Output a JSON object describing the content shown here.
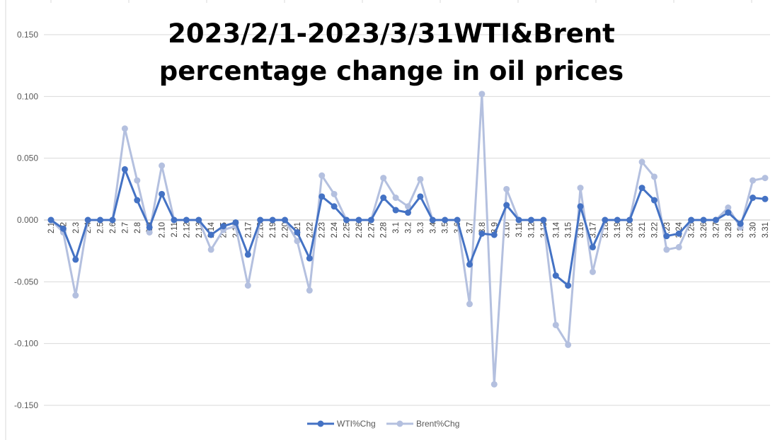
{
  "chart_data": {
    "type": "line",
    "title_lines": [
      "2023/2/1-2023/3/31WTI&Brent",
      "percentage change in oil prices"
    ],
    "xlabel": "",
    "ylabel": "",
    "ylim": [
      -0.15,
      0.15
    ],
    "yticks": [
      "0.150",
      "0.100",
      "0.050",
      "0.000",
      "-0.050",
      "-0.100",
      "-0.150"
    ],
    "ytick_values": [
      0.15,
      0.1,
      0.05,
      0.0,
      -0.05,
      -0.1,
      -0.15
    ],
    "grid": true,
    "legend_position": "bottom",
    "categories": [
      "2.1",
      "2.2",
      "2.3",
      "2.4",
      "2.5",
      "2.6",
      "2.7",
      "2.8",
      "2.9",
      "2.10",
      "2.11",
      "2.12",
      "2.13",
      "2.14",
      "2.15",
      "2.16",
      "2.17",
      "2.18",
      "2.19",
      "2.20",
      "2.21",
      "2.22",
      "2.23",
      "2.24",
      "2.25",
      "2.26",
      "2.27",
      "2.28",
      "3.1",
      "3.2",
      "3.3",
      "3.4",
      "3.5",
      "3.6",
      "3.7",
      "3.8",
      "3.9",
      "3.10",
      "3.11",
      "3.12",
      "3.13",
      "3.14",
      "3.15",
      "3.16",
      "3.17",
      "3.18",
      "3.19",
      "3.20",
      "3.21",
      "3.22",
      "3.23",
      "3.24",
      "3.25",
      "3.26",
      "3.27",
      "3.28",
      "3.29",
      "3.30",
      "3.31"
    ],
    "series": [
      {
        "name": "WTI%Chg",
        "color": "#4472c4",
        "values": [
          0.0,
          -0.007,
          -0.032,
          0.0,
          0.0,
          0.0,
          0.041,
          0.016,
          -0.006,
          0.021,
          0.0,
          0.0,
          0.0,
          -0.012,
          -0.005,
          -0.002,
          -0.028,
          0.0,
          0.0,
          0.0,
          -0.01,
          -0.031,
          0.019,
          0.011,
          0.0,
          0.0,
          0.0,
          0.018,
          0.008,
          0.006,
          0.019,
          0.0,
          0.0,
          0.0,
          -0.036,
          -0.011,
          -0.012,
          0.012,
          0.0,
          0.0,
          0.0,
          -0.045,
          -0.053,
          0.011,
          -0.022,
          0.0,
          0.0,
          0.0,
          0.026,
          0.016,
          -0.013,
          -0.011,
          0.0,
          0.0,
          0.0,
          0.006,
          -0.003,
          0.018,
          0.017
        ]
      },
      {
        "name": "Brent%Chg",
        "color": "#b4c0df",
        "values": [
          0.0,
          -0.01,
          -0.061,
          0.0,
          0.0,
          0.0,
          0.074,
          0.032,
          -0.01,
          0.044,
          0.0,
          0.0,
          0.0,
          -0.024,
          -0.008,
          -0.005,
          -0.053,
          0.0,
          0.0,
          0.0,
          -0.017,
          -0.057,
          0.036,
          0.021,
          0.0,
          0.0,
          0.0,
          0.034,
          0.018,
          0.011,
          0.033,
          0.0,
          0.0,
          0.0,
          -0.068,
          0.102,
          -0.133,
          0.025,
          0.0,
          0.0,
          0.0,
          -0.085,
          -0.101,
          0.026,
          -0.042,
          0.0,
          0.0,
          0.0,
          0.047,
          0.035,
          -0.024,
          -0.022,
          0.0,
          0.0,
          0.0,
          0.01,
          -0.006,
          0.032,
          0.034
        ]
      }
    ]
  }
}
